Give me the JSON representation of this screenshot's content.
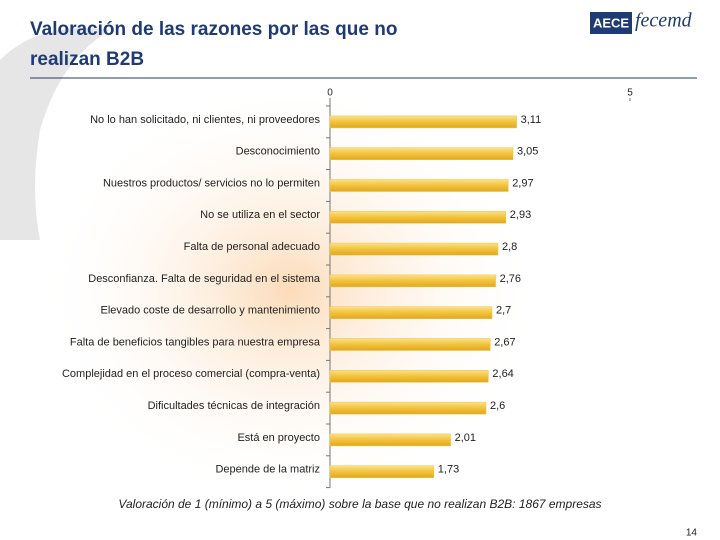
{
  "logo": {
    "brand": "AECE",
    "name": "fecemd"
  },
  "page_number": "14",
  "chart_data": {
    "type": "bar",
    "orientation": "horizontal",
    "title": [
      "Valoración de las razones por las que no",
      "realizan B2B"
    ],
    "categories": [
      "No lo han solicitado, ni clientes, ni proveedores",
      "Desconocimiento",
      "Nuestros productos/ servicios no lo permiten",
      "No se utiliza en el sector",
      "Falta de personal adecuado",
      "Desconfianza. Falta de seguridad en el sistema",
      "Elevado coste de desarrollo y mantenimiento",
      "Falta de beneficios tangibles para nuestra empresa",
      "Complejidad en el proceso comercial (compra-venta)",
      "Dificultades técnicas de integración",
      "Está en proyecto",
      "Depende de la matriz"
    ],
    "values": [
      3.11,
      3.05,
      2.97,
      2.93,
      2.8,
      2.76,
      2.7,
      2.67,
      2.64,
      2.6,
      2.01,
      1.73
    ],
    "value_labels": [
      "3,11",
      "3,05",
      "2,97",
      "2,93",
      "2,8",
      "2,76",
      "2,7",
      "2,67",
      "2,64",
      "2,6",
      "2,01",
      "1,73"
    ],
    "color": "#f2c23c",
    "xlim": [
      0,
      5
    ],
    "xticks": [
      0,
      5
    ],
    "caption": "Valoración de 1 (mínimo) a 5 (máximo) sobre la base que no realizan B2B: 1867 empresas"
  }
}
